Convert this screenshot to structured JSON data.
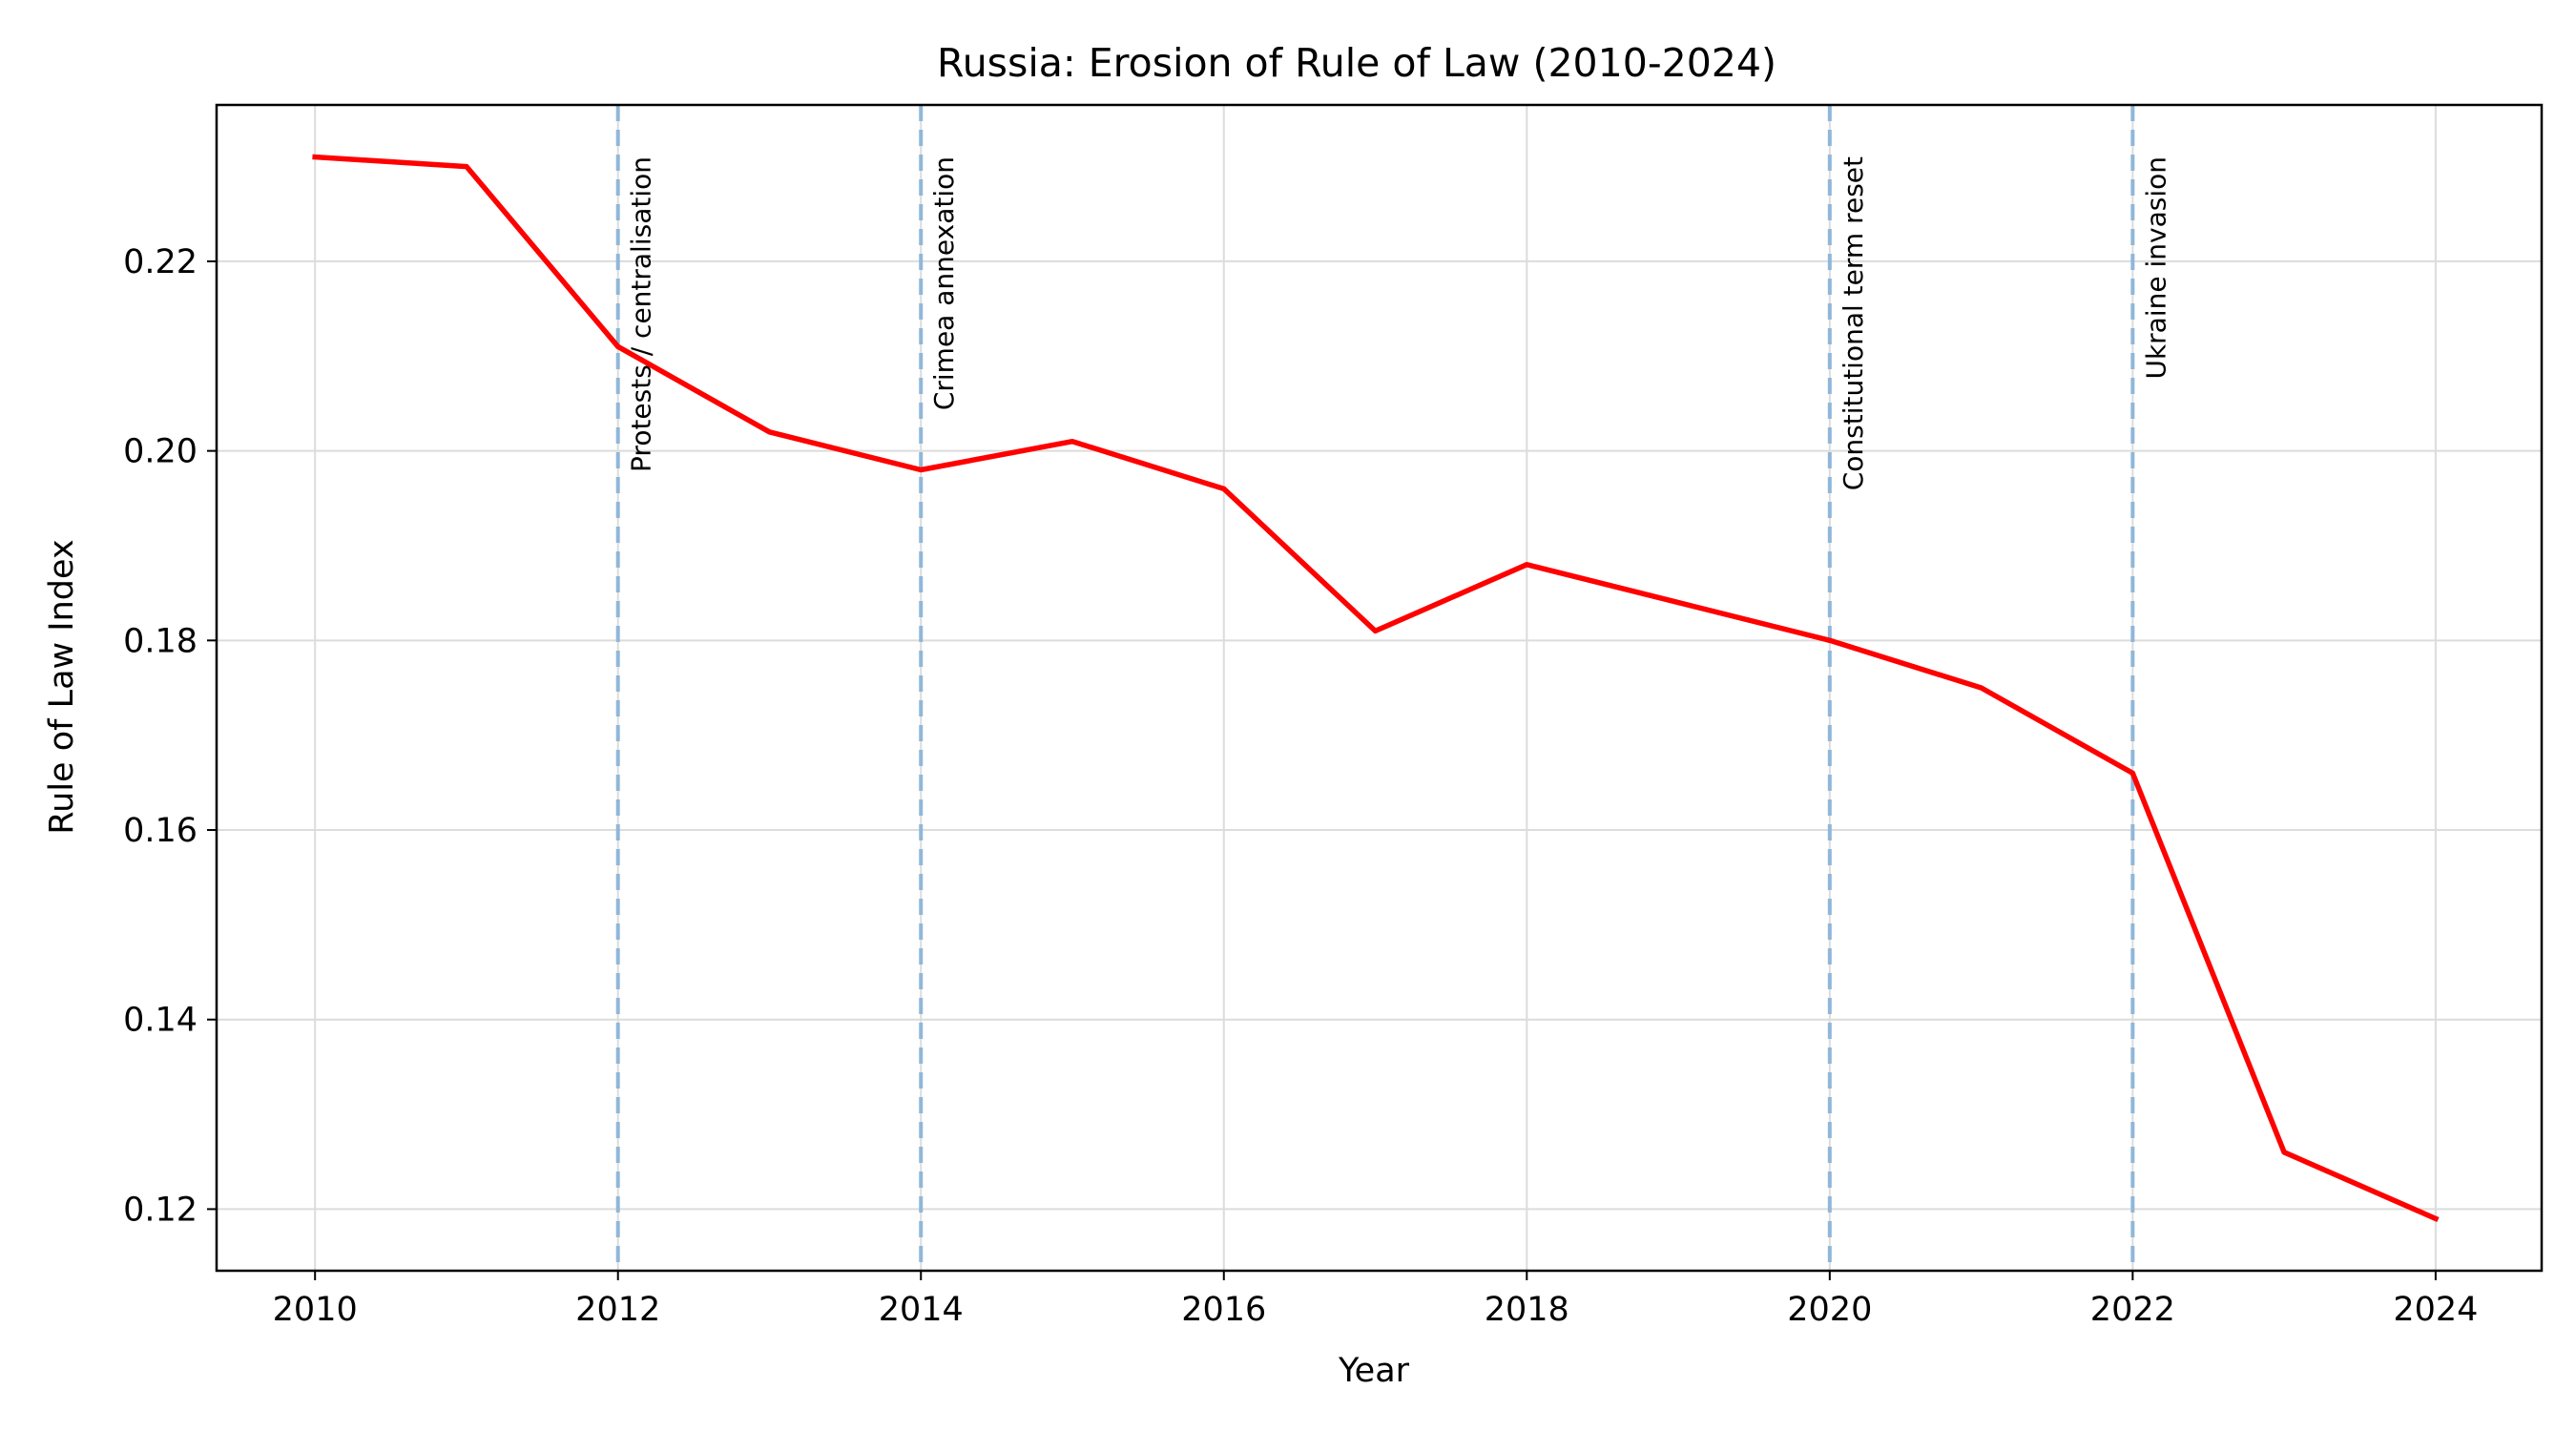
{
  "chart_data": {
    "type": "line",
    "title": "Russia: Erosion of Rule of Law (2010-2024)",
    "xlabel": "Year",
    "ylabel": "Rule of Law Index",
    "xlim": [
      2009.35,
      2024.7
    ],
    "ylim": [
      0.1135,
      0.2365
    ],
    "x_ticks": [
      2010,
      2012,
      2014,
      2016,
      2018,
      2020,
      2022,
      2024
    ],
    "y_ticks": [
      0.12,
      0.14,
      0.16,
      0.18,
      0.2,
      0.22
    ],
    "y_tick_labels": [
      "0.12",
      "0.14",
      "0.16",
      "0.18",
      "0.20",
      "0.22"
    ],
    "grid": true,
    "legend": "none",
    "series": [
      {
        "color": "#ff0000",
        "x": [
          2010,
          2011,
          2012,
          2013,
          2014,
          2015,
          2016,
          2017,
          2018,
          2019,
          2020,
          2021,
          2022,
          2023,
          2024
        ],
        "y": [
          0.231,
          0.23,
          0.211,
          0.202,
          0.198,
          0.201,
          0.196,
          0.181,
          0.188,
          0.184,
          0.18,
          0.175,
          0.166,
          0.126,
          0.119
        ]
      }
    ],
    "annotations": [
      {
        "x": 2012,
        "label": "Protests / centralisation"
      },
      {
        "x": 2014,
        "label": "Crimea annexation"
      },
      {
        "x": 2020,
        "label": "Constitutional term reset"
      },
      {
        "x": 2022,
        "label": "Ukraine invasion"
      }
    ],
    "annotation_color": "#8fb7d9"
  }
}
